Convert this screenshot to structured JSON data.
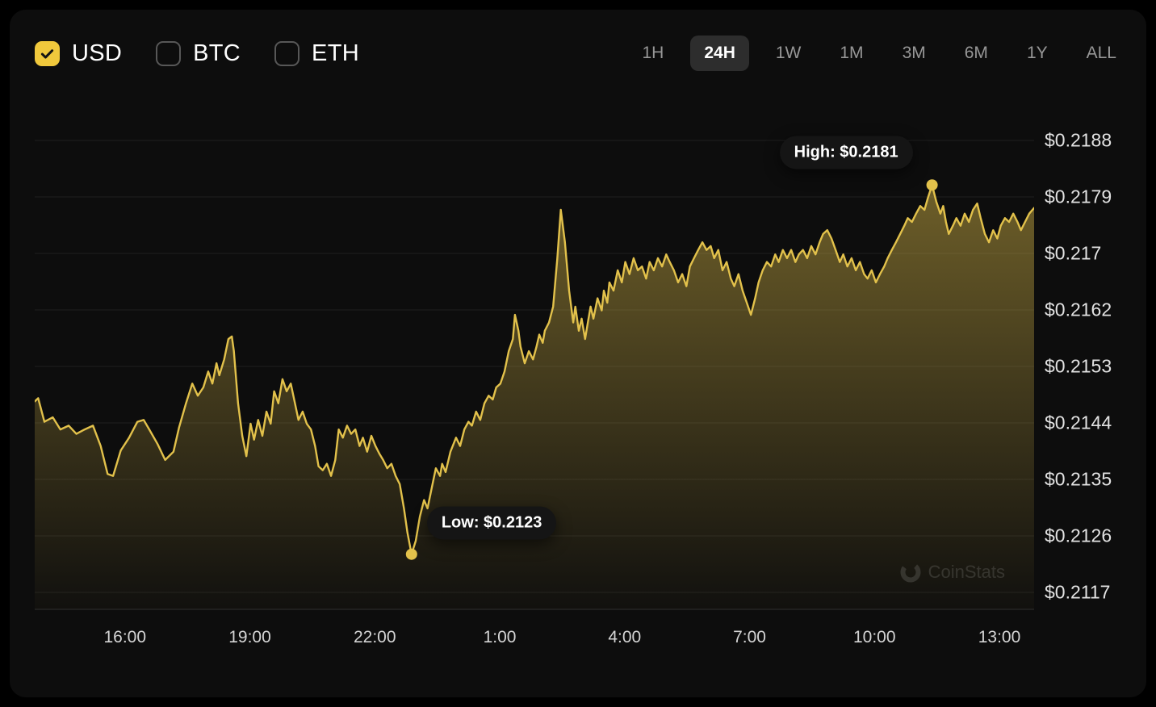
{
  "colors": {
    "accent": "#E2C14B",
    "checkbox_checked": "#F0C83C",
    "tooltip_bg": "#151515",
    "grid": "rgba(255,255,255,0.07)",
    "baseline": "rgba(255,255,255,0.14)",
    "card_bg": "#0d0d0d"
  },
  "currency_toggles": [
    {
      "label": "USD",
      "checked": true
    },
    {
      "label": "BTC",
      "checked": false
    },
    {
      "label": "ETH",
      "checked": false
    }
  ],
  "range_tabs": [
    {
      "label": "1H",
      "active": false
    },
    {
      "label": "24H",
      "active": true
    },
    {
      "label": "1W",
      "active": false
    },
    {
      "label": "1M",
      "active": false
    },
    {
      "label": "3M",
      "active": false
    },
    {
      "label": "6M",
      "active": false
    },
    {
      "label": "1Y",
      "active": false
    },
    {
      "label": "ALL",
      "active": false
    }
  ],
  "watermark": {
    "text": "CoinStats"
  },
  "chart_data": {
    "type": "area",
    "title": "",
    "xlabel": "",
    "ylabel": "",
    "legend": "none",
    "grid": "horizontal",
    "currency": "USD",
    "selected_range": "24H",
    "ylim": [
      0.2117,
      0.2188
    ],
    "t_range": [
      0,
      1440
    ],
    "y_ticks": [
      "$0.2188",
      "$0.2179",
      "$0.217",
      "$0.2162",
      "$0.2153",
      "$0.2144",
      "$0.2135",
      "$0.2126",
      "$0.2117"
    ],
    "x_ticks": [
      {
        "label": "16:00",
        "t": 130
      },
      {
        "label": "19:00",
        "t": 310
      },
      {
        "label": "22:00",
        "t": 490
      },
      {
        "label": "1:00",
        "t": 670
      },
      {
        "label": "4:00",
        "t": 850
      },
      {
        "label": "7:00",
        "t": 1030
      },
      {
        "label": "10:00",
        "t": 1210
      },
      {
        "label": "13:00",
        "t": 1390
      }
    ],
    "annotations": {
      "high": {
        "label": "High: $0.2181",
        "t": 1293,
        "price": 0.2181
      },
      "low": {
        "label": "Low: $0.2123",
        "t": 543,
        "price": 0.2123
      }
    },
    "points": [
      [
        0,
        0.2147
      ],
      [
        5,
        0.21475
      ],
      [
        14,
        0.21438
      ],
      [
        26,
        0.21445
      ],
      [
        37,
        0.21426
      ],
      [
        49,
        0.21432
      ],
      [
        60,
        0.21419
      ],
      [
        72,
        0.21426
      ],
      [
        84,
        0.21432
      ],
      [
        95,
        0.214
      ],
      [
        105,
        0.21356
      ],
      [
        113,
        0.21353
      ],
      [
        124,
        0.21393
      ],
      [
        136,
        0.21413
      ],
      [
        148,
        0.21438
      ],
      [
        157,
        0.21441
      ],
      [
        165,
        0.21426
      ],
      [
        177,
        0.21403
      ],
      [
        188,
        0.21378
      ],
      [
        200,
        0.21391
      ],
      [
        208,
        0.21429
      ],
      [
        218,
        0.21467
      ],
      [
        227,
        0.21498
      ],
      [
        235,
        0.21479
      ],
      [
        243,
        0.21492
      ],
      [
        250,
        0.21517
      ],
      [
        256,
        0.21498
      ],
      [
        262,
        0.2153
      ],
      [
        266,
        0.21511
      ],
      [
        273,
        0.21536
      ],
      [
        279,
        0.21568
      ],
      [
        284,
        0.21572
      ],
      [
        287,
        0.21549
      ],
      [
        293,
        0.21467
      ],
      [
        299,
        0.21416
      ],
      [
        305,
        0.21384
      ],
      [
        311,
        0.21435
      ],
      [
        316,
        0.2141
      ],
      [
        322,
        0.21441
      ],
      [
        328,
        0.21416
      ],
      [
        334,
        0.21454
      ],
      [
        340,
        0.21435
      ],
      [
        345,
        0.21486
      ],
      [
        351,
        0.21467
      ],
      [
        357,
        0.21505
      ],
      [
        363,
        0.21486
      ],
      [
        369,
        0.21498
      ],
      [
        375,
        0.21467
      ],
      [
        380,
        0.21441
      ],
      [
        386,
        0.21454
      ],
      [
        392,
        0.21435
      ],
      [
        398,
        0.21426
      ],
      [
        404,
        0.214
      ],
      [
        409,
        0.21368
      ],
      [
        415,
        0.21362
      ],
      [
        421,
        0.21372
      ],
      [
        427,
        0.21353
      ],
      [
        433,
        0.21378
      ],
      [
        438,
        0.21426
      ],
      [
        444,
        0.21413
      ],
      [
        450,
        0.21432
      ],
      [
        456,
        0.21419
      ],
      [
        462,
        0.21426
      ],
      [
        468,
        0.214
      ],
      [
        473,
        0.21413
      ],
      [
        479,
        0.21391
      ],
      [
        485,
        0.21416
      ],
      [
        491,
        0.214
      ],
      [
        497,
        0.21387
      ],
      [
        502,
        0.21378
      ],
      [
        508,
        0.21365
      ],
      [
        514,
        0.21372
      ],
      [
        520,
        0.21353
      ],
      [
        526,
        0.2134
      ],
      [
        532,
        0.21302
      ],
      [
        537,
        0.21264
      ],
      [
        543,
        0.2123
      ],
      [
        549,
        0.21251
      ],
      [
        555,
        0.21289
      ],
      [
        561,
        0.21315
      ],
      [
        566,
        0.21302
      ],
      [
        572,
        0.21334
      ],
      [
        578,
        0.21365
      ],
      [
        584,
        0.21353
      ],
      [
        587,
        0.21372
      ],
      [
        592,
        0.21359
      ],
      [
        599,
        0.21391
      ],
      [
        607,
        0.21413
      ],
      [
        613,
        0.214
      ],
      [
        619,
        0.21426
      ],
      [
        625,
        0.21438
      ],
      [
        630,
        0.21432
      ],
      [
        636,
        0.21454
      ],
      [
        642,
        0.21441
      ],
      [
        648,
        0.21467
      ],
      [
        654,
        0.21479
      ],
      [
        660,
        0.21473
      ],
      [
        665,
        0.21492
      ],
      [
        671,
        0.21498
      ],
      [
        677,
        0.21517
      ],
      [
        683,
        0.21549
      ],
      [
        689,
        0.21568
      ],
      [
        692,
        0.21606
      ],
      [
        697,
        0.21581
      ],
      [
        700,
        0.21556
      ],
      [
        706,
        0.2153
      ],
      [
        712,
        0.21549
      ],
      [
        718,
        0.21536
      ],
      [
        723,
        0.21556
      ],
      [
        727,
        0.21575
      ],
      [
        732,
        0.21562
      ],
      [
        735,
        0.21581
      ],
      [
        741,
        0.21594
      ],
      [
        747,
        0.21619
      ],
      [
        753,
        0.21695
      ],
      [
        758,
        0.21771
      ],
      [
        764,
        0.2172
      ],
      [
        770,
        0.21644
      ],
      [
        776,
        0.21594
      ],
      [
        779,
        0.21619
      ],
      [
        784,
        0.21581
      ],
      [
        788,
        0.216
      ],
      [
        793,
        0.21568
      ],
      [
        797,
        0.21594
      ],
      [
        801,
        0.21619
      ],
      [
        805,
        0.216
      ],
      [
        811,
        0.21632
      ],
      [
        817,
        0.21613
      ],
      [
        820,
        0.21644
      ],
      [
        825,
        0.21625
      ],
      [
        828,
        0.21657
      ],
      [
        834,
        0.21644
      ],
      [
        840,
        0.21676
      ],
      [
        846,
        0.21657
      ],
      [
        851,
        0.21689
      ],
      [
        857,
        0.2167
      ],
      [
        863,
        0.21695
      ],
      [
        869,
        0.21676
      ],
      [
        875,
        0.21682
      ],
      [
        881,
        0.21663
      ],
      [
        886,
        0.21689
      ],
      [
        892,
        0.21676
      ],
      [
        898,
        0.21695
      ],
      [
        904,
        0.21682
      ],
      [
        910,
        0.21701
      ],
      [
        915,
        0.21689
      ],
      [
        921,
        0.21676
      ],
      [
        927,
        0.21657
      ],
      [
        933,
        0.2167
      ],
      [
        939,
        0.21651
      ],
      [
        944,
        0.21682
      ],
      [
        950,
        0.21695
      ],
      [
        956,
        0.21708
      ],
      [
        962,
        0.2172
      ],
      [
        968,
        0.21708
      ],
      [
        974,
        0.21714
      ],
      [
        979,
        0.21695
      ],
      [
        985,
        0.21708
      ],
      [
        991,
        0.21676
      ],
      [
        997,
        0.21689
      ],
      [
        1003,
        0.21663
      ],
      [
        1008,
        0.21651
      ],
      [
        1014,
        0.2167
      ],
      [
        1020,
        0.21644
      ],
      [
        1026,
        0.21625
      ],
      [
        1032,
        0.21606
      ],
      [
        1038,
        0.21632
      ],
      [
        1043,
        0.21657
      ],
      [
        1049,
        0.21676
      ],
      [
        1055,
        0.21689
      ],
      [
        1061,
        0.21682
      ],
      [
        1067,
        0.21701
      ],
      [
        1072,
        0.21689
      ],
      [
        1078,
        0.21708
      ],
      [
        1084,
        0.21695
      ],
      [
        1090,
        0.21708
      ],
      [
        1096,
        0.21689
      ],
      [
        1101,
        0.21701
      ],
      [
        1107,
        0.21708
      ],
      [
        1113,
        0.21695
      ],
      [
        1119,
        0.21714
      ],
      [
        1125,
        0.21701
      ],
      [
        1131,
        0.2172
      ],
      [
        1136,
        0.21733
      ],
      [
        1142,
        0.21739
      ],
      [
        1148,
        0.21726
      ],
      [
        1154,
        0.21708
      ],
      [
        1160,
        0.21689
      ],
      [
        1165,
        0.21701
      ],
      [
        1171,
        0.21682
      ],
      [
        1177,
        0.21695
      ],
      [
        1183,
        0.21676
      ],
      [
        1189,
        0.21689
      ],
      [
        1195,
        0.2167
      ],
      [
        1200,
        0.21663
      ],
      [
        1206,
        0.21676
      ],
      [
        1212,
        0.21657
      ],
      [
        1218,
        0.2167
      ],
      [
        1224,
        0.21682
      ],
      [
        1229,
        0.21695
      ],
      [
        1235,
        0.21708
      ],
      [
        1241,
        0.2172
      ],
      [
        1247,
        0.21733
      ],
      [
        1253,
        0.21746
      ],
      [
        1258,
        0.21758
      ],
      [
        1264,
        0.21752
      ],
      [
        1270,
        0.21765
      ],
      [
        1276,
        0.21777
      ],
      [
        1282,
        0.21771
      ],
      [
        1287,
        0.2179
      ],
      [
        1293,
        0.2181
      ],
      [
        1299,
        0.21784
      ],
      [
        1305,
        0.21765
      ],
      [
        1309,
        0.21777
      ],
      [
        1313,
        0.21752
      ],
      [
        1317,
        0.21733
      ],
      [
        1323,
        0.21746
      ],
      [
        1328,
        0.21758
      ],
      [
        1334,
        0.21746
      ],
      [
        1340,
        0.21765
      ],
      [
        1346,
        0.21752
      ],
      [
        1352,
        0.21771
      ],
      [
        1358,
        0.21781
      ],
      [
        1363,
        0.21758
      ],
      [
        1369,
        0.21733
      ],
      [
        1375,
        0.2172
      ],
      [
        1381,
        0.21739
      ],
      [
        1387,
        0.21726
      ],
      [
        1392,
        0.21746
      ],
      [
        1398,
        0.21758
      ],
      [
        1404,
        0.21752
      ],
      [
        1410,
        0.21765
      ],
      [
        1416,
        0.21752
      ],
      [
        1421,
        0.21739
      ],
      [
        1427,
        0.21752
      ],
      [
        1433,
        0.21765
      ],
      [
        1440,
        0.21774
      ]
    ]
  }
}
